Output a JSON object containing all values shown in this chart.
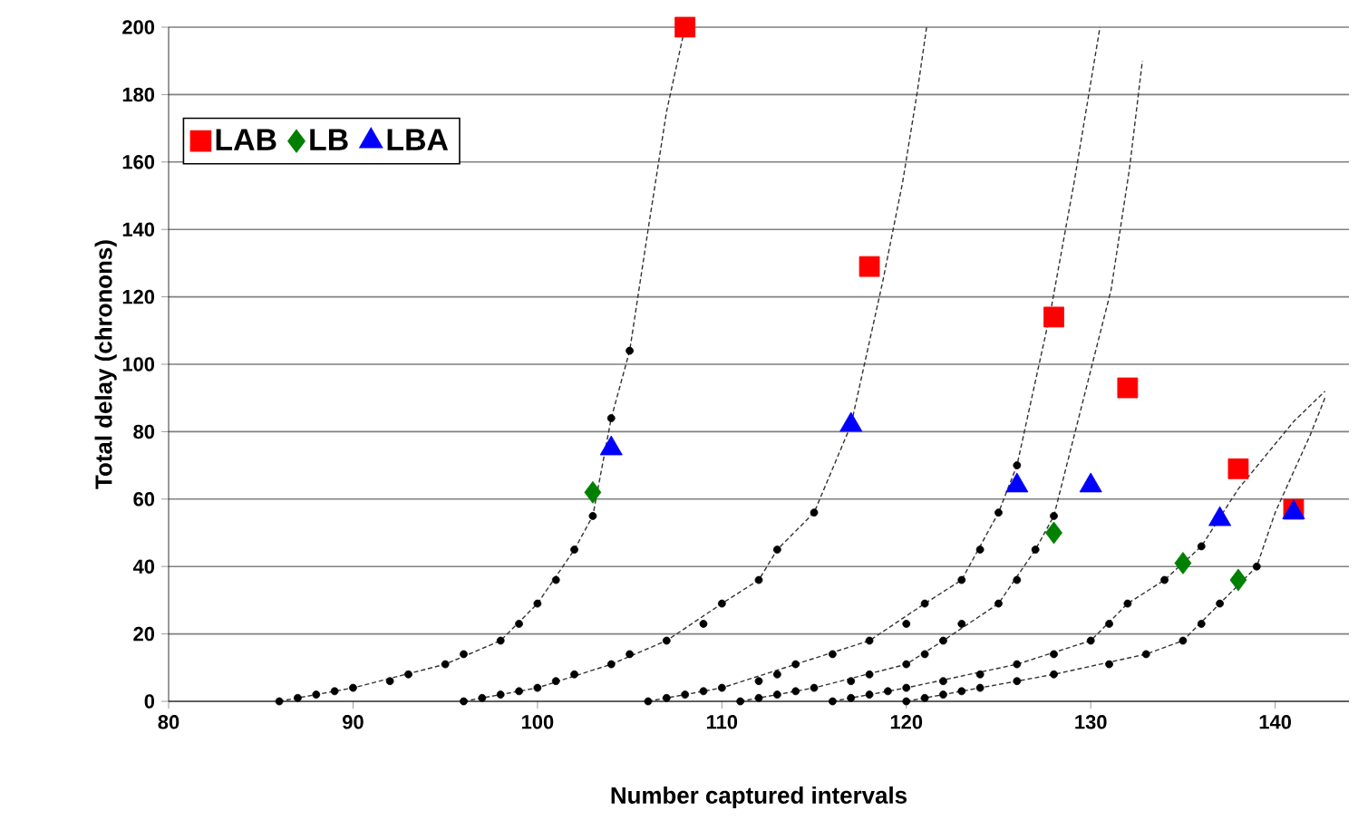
{
  "chart_data": {
    "type": "scatter",
    "xlabel": "Number captured intervals",
    "ylabel": "Total delay (chronons)",
    "xlim": [
      80,
      144
    ],
    "ylim": [
      0,
      200
    ],
    "xticks": [
      80,
      90,
      100,
      110,
      120,
      130,
      140
    ],
    "yticks": [
      0,
      20,
      40,
      60,
      80,
      100,
      120,
      140,
      160,
      180,
      200
    ],
    "grid": "y",
    "legend": "top left",
    "series": [
      {
        "type": "line",
        "color": "#333333",
        "marker": "none",
        "line_style": "dashed",
        "x": [
          86,
          90,
          95,
          98,
          100,
          102,
          103,
          104,
          105,
          106,
          107,
          108
        ],
        "values": [
          0,
          4,
          11,
          18,
          29,
          45,
          55,
          84,
          104,
          140,
          175,
          200
        ]
      },
      {
        "type": "line",
        "color": "#333333",
        "marker": "none",
        "line_style": "dashed",
        "x": [
          96,
          100,
          104,
          107,
          110,
          112,
          113,
          115,
          117,
          118.7,
          119.8,
          120.6,
          121.1
        ],
        "values": [
          0,
          4,
          11,
          18,
          29,
          36,
          45,
          56,
          82,
          124,
          154,
          181,
          200
        ]
      },
      {
        "type": "line",
        "color": "#333333",
        "marker": "none",
        "line_style": "dashed",
        "x": [
          106,
          110,
          114,
          118,
          121,
          123,
          125,
          126,
          127.8,
          129.1,
          130.5
        ],
        "values": [
          0,
          4,
          11,
          18,
          29,
          36,
          56,
          70,
          115,
          154,
          200
        ]
      },
      {
        "type": "line",
        "color": "#333333",
        "marker": "none",
        "line_style": "dashed",
        "x": [
          111,
          115,
          120,
          122,
          125,
          127,
          128,
          131.1,
          132.1,
          132.8
        ],
        "values": [
          0,
          4,
          11,
          18,
          29,
          45,
          55,
          122,
          158,
          190
        ]
      },
      {
        "type": "line",
        "color": "#333333",
        "marker": "none",
        "line_style": "dashed",
        "x": [
          116,
          120,
          126,
          130,
          132,
          134,
          136,
          138,
          141,
          142.7
        ],
        "values": [
          0,
          4,
          11,
          18,
          29,
          36,
          46,
          63,
          83,
          92
        ]
      },
      {
        "type": "line",
        "color": "#333333",
        "marker": "none",
        "line_style": "dashed",
        "x": [
          120,
          124,
          128,
          133,
          135,
          137,
          139,
          140,
          141.9,
          142.7
        ],
        "values": [
          0,
          4,
          8,
          14,
          18,
          29,
          40,
          56,
          79,
          90
        ]
      },
      {
        "color": "#000000",
        "marker": "circle",
        "x": [
          86,
          87,
          88,
          89,
          90,
          92,
          93,
          95,
          96,
          98,
          99,
          100,
          101,
          102,
          103,
          104,
          105
        ],
        "values": [
          0,
          1,
          2,
          3,
          4,
          6,
          8,
          11,
          14,
          18,
          23,
          29,
          36,
          45,
          55,
          84,
          104
        ]
      },
      {
        "color": "#000000",
        "marker": "circle",
        "x": [
          96,
          97,
          98,
          99,
          100,
          101,
          102,
          104,
          105,
          107,
          109,
          110,
          112,
          113,
          115
        ],
        "values": [
          0,
          1,
          2,
          3,
          4,
          6,
          8,
          11,
          14,
          18,
          23,
          29,
          36,
          45,
          56
        ]
      },
      {
        "color": "#000000",
        "marker": "circle",
        "x": [
          106,
          107,
          108,
          109,
          110,
          112,
          113,
          114,
          116,
          118,
          120,
          121,
          123,
          124,
          125,
          126
        ],
        "values": [
          0,
          1,
          2,
          3,
          4,
          6,
          8,
          11,
          14,
          18,
          23,
          29,
          36,
          45,
          56,
          70
        ]
      },
      {
        "color": "#000000",
        "marker": "circle",
        "x": [
          111,
          112,
          113,
          114,
          115,
          117,
          118,
          120,
          121,
          122,
          123,
          125,
          126,
          127,
          128
        ],
        "values": [
          0,
          1,
          2,
          3,
          4,
          6,
          8,
          11,
          14,
          18,
          23,
          29,
          36,
          45,
          55
        ]
      },
      {
        "color": "#000000",
        "marker": "circle",
        "x": [
          116,
          117,
          118,
          119,
          120,
          122,
          124,
          126,
          128,
          130,
          131,
          132,
          134,
          136
        ],
        "values": [
          0,
          1,
          2,
          3,
          4,
          6,
          8,
          11,
          14,
          18,
          23,
          29,
          36,
          46
        ]
      },
      {
        "color": "#000000",
        "marker": "circle",
        "x": [
          120,
          121,
          122,
          123,
          124,
          126,
          128,
          131,
          133,
          135,
          136,
          137,
          139
        ],
        "values": [
          0,
          1,
          2,
          3,
          4,
          6,
          8,
          11,
          14,
          18,
          23,
          29,
          40
        ]
      },
      {
        "name": "LAB",
        "color": "#ff0000",
        "marker": "square",
        "x": [
          108,
          118,
          128,
          132,
          138,
          141
        ],
        "values": [
          200,
          129,
          114,
          93,
          69,
          57
        ]
      },
      {
        "name": "LB",
        "color": "#008000",
        "marker": "diamond",
        "x": [
          103,
          128,
          135,
          138
        ],
        "values": [
          62,
          50,
          41,
          36
        ]
      },
      {
        "name": "LBA",
        "color": "#0000ff",
        "marker": "triangle",
        "x": [
          104,
          117,
          126,
          130,
          137,
          141
        ],
        "values": [
          75,
          82,
          64,
          64,
          54,
          56
        ]
      }
    ]
  }
}
